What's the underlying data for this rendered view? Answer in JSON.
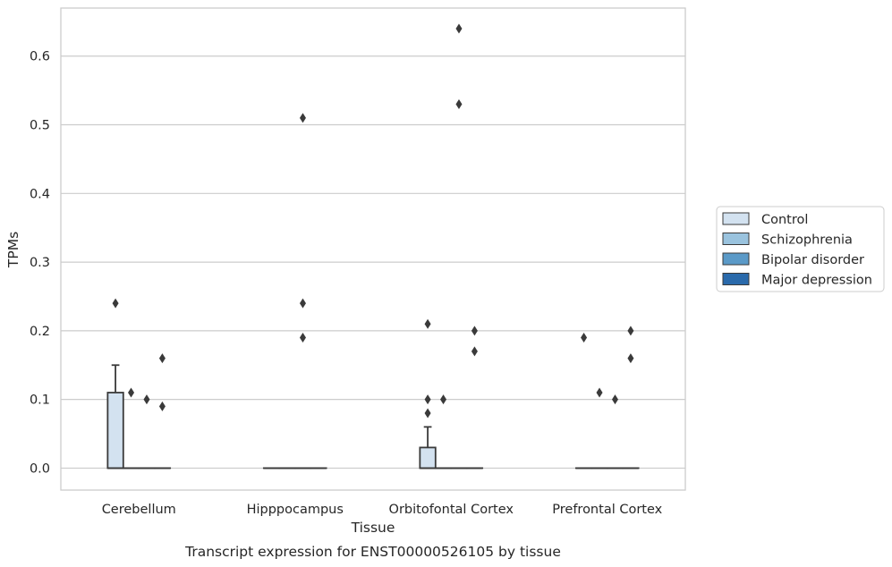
{
  "chart_data": {
    "type": "boxplot",
    "caption": "Transcript expression for ENST00000526105 by tissue",
    "xlabel": "Tissue",
    "ylabel": "TPMs",
    "ylim": [
      -0.032,
      0.67
    ],
    "yticks": [
      "0.0",
      "0.1",
      "0.2",
      "0.3",
      "0.4",
      "0.5",
      "0.6"
    ],
    "grid": true,
    "legend_position": "right",
    "categories": [
      "Cerebellum",
      "Hipppocampus",
      "Orbitofontal Cortex",
      "Prefrontal Cortex"
    ],
    "series": [
      {
        "name": "Control",
        "color": "#d3e2f0",
        "boxes": [
          {
            "q1": 0.0,
            "median": 0.0,
            "q3": 0.11,
            "whisker_low": 0.0,
            "whisker_high": 0.15,
            "outliers": [
              0.24
            ]
          },
          {
            "q1": 0.0,
            "median": 0.0,
            "q3": 0.0,
            "whisker_low": 0.0,
            "whisker_high": 0.0,
            "outliers": []
          },
          {
            "q1": 0.0,
            "median": 0.0,
            "q3": 0.03,
            "whisker_low": 0.0,
            "whisker_high": 0.06,
            "outliers": [
              0.08,
              0.1,
              0.21
            ]
          },
          {
            "q1": 0.0,
            "median": 0.0,
            "q3": 0.0,
            "whisker_low": 0.0,
            "whisker_high": 0.0,
            "outliers": [
              0.19
            ]
          }
        ]
      },
      {
        "name": "Schizophrenia",
        "color": "#9ac3de",
        "boxes": [
          {
            "q1": 0.0,
            "median": 0.0,
            "q3": 0.0,
            "whisker_low": 0.0,
            "whisker_high": 0.0,
            "outliers": [
              0.11
            ]
          },
          {
            "q1": 0.0,
            "median": 0.0,
            "q3": 0.0,
            "whisker_low": 0.0,
            "whisker_high": 0.0,
            "outliers": []
          },
          {
            "q1": 0.0,
            "median": 0.0,
            "q3": 0.0,
            "whisker_low": 0.0,
            "whisker_high": 0.0,
            "outliers": [
              0.1
            ]
          },
          {
            "q1": 0.0,
            "median": 0.0,
            "q3": 0.0,
            "whisker_low": 0.0,
            "whisker_high": 0.0,
            "outliers": [
              0.11
            ]
          }
        ]
      },
      {
        "name": "Bipolar disorder",
        "color": "#5b9ac8",
        "boxes": [
          {
            "q1": 0.0,
            "median": 0.0,
            "q3": 0.0,
            "whisker_low": 0.0,
            "whisker_high": 0.0,
            "outliers": [
              0.1
            ]
          },
          {
            "q1": 0.0,
            "median": 0.0,
            "q3": 0.0,
            "whisker_low": 0.0,
            "whisker_high": 0.0,
            "outliers": [
              0.19,
              0.24,
              0.51
            ]
          },
          {
            "q1": 0.0,
            "median": 0.0,
            "q3": 0.0,
            "whisker_low": 0.0,
            "whisker_high": 0.0,
            "outliers": [
              0.53,
              0.64
            ]
          },
          {
            "q1": 0.0,
            "median": 0.0,
            "q3": 0.0,
            "whisker_low": 0.0,
            "whisker_high": 0.0,
            "outliers": [
              0.1
            ]
          }
        ]
      },
      {
        "name": "Major depression",
        "color": "#2a6aab",
        "boxes": [
          {
            "q1": 0.0,
            "median": 0.0,
            "q3": 0.0,
            "whisker_low": 0.0,
            "whisker_high": 0.0,
            "outliers": [
              0.09,
              0.16
            ]
          },
          {
            "q1": 0.0,
            "median": 0.0,
            "q3": 0.0,
            "whisker_low": 0.0,
            "whisker_high": 0.0,
            "outliers": []
          },
          {
            "q1": 0.0,
            "median": 0.0,
            "q3": 0.0,
            "whisker_low": 0.0,
            "whisker_high": 0.0,
            "outliers": [
              0.17,
              0.2
            ]
          },
          {
            "q1": 0.0,
            "median": 0.0,
            "q3": 0.0,
            "whisker_low": 0.0,
            "whisker_high": 0.0,
            "outliers": [
              0.16,
              0.2
            ]
          }
        ]
      }
    ]
  }
}
